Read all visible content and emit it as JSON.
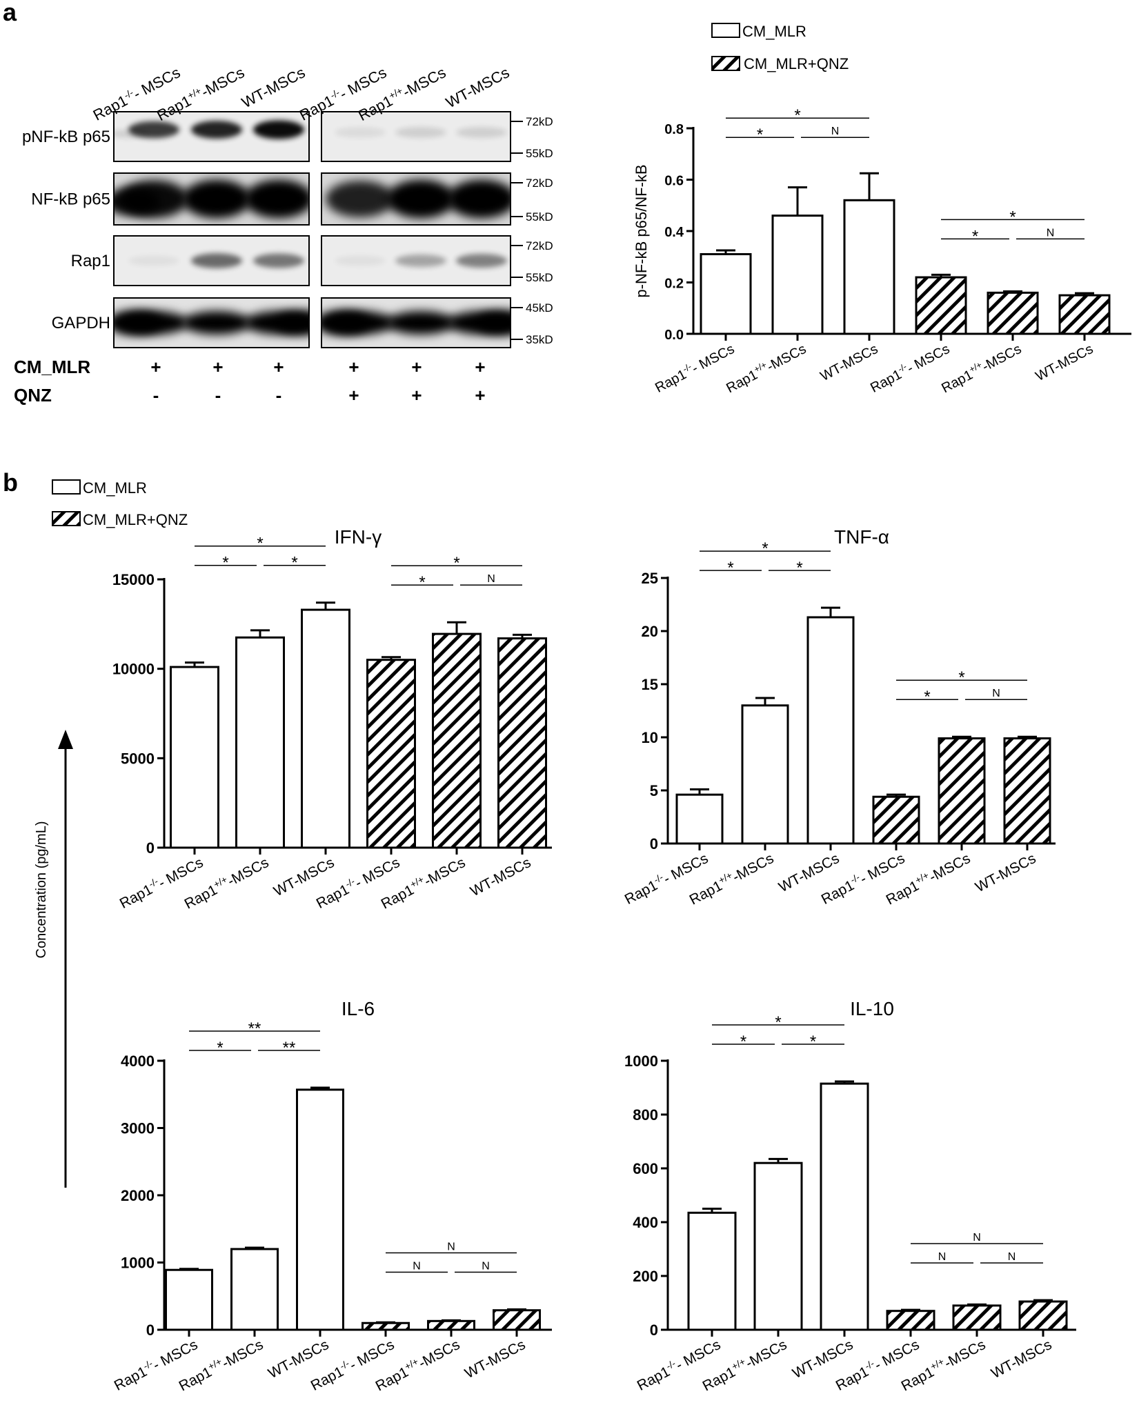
{
  "panels": {
    "a": "a",
    "b": "b"
  },
  "blot": {
    "rows": [
      {
        "label": "pNF-kB  p65",
        "markers": [
          "72kD",
          "55kD"
        ]
      },
      {
        "label": "NF-kB p65",
        "markers": [
          "72kD",
          "55kD"
        ]
      },
      {
        "label": "Rap1",
        "markers": [
          "72kD",
          "55kD"
        ]
      },
      {
        "label": "GAPDH",
        "markers": [
          "45kD",
          "35kD"
        ]
      }
    ],
    "lanes": [
      {
        "name": "Rap1",
        "sup": "-/-",
        "suffix": "- MSCs"
      },
      {
        "name": "Rap1",
        "sup": "+/+",
        "suffix": "-MSCs"
      },
      {
        "name": "WT-MSCs",
        "sup": "",
        "suffix": ""
      },
      {
        "name": "Rap1",
        "sup": "-/-",
        "suffix": "- MSCs"
      },
      {
        "name": "Rap1",
        "sup": "+/+",
        "suffix": "-MSCs"
      },
      {
        "name": "WT-MSCs",
        "sup": "",
        "suffix": ""
      }
    ],
    "treatments": [
      {
        "label": "CM_MLR",
        "values": [
          "+",
          "+",
          "+",
          "+",
          "+",
          "+"
        ]
      },
      {
        "label": "QNZ",
        "values": [
          "-",
          "-",
          "-",
          "+",
          "+",
          "+"
        ]
      }
    ]
  },
  "legend_a": [
    "CM_MLR",
    "CM_MLR+QNZ"
  ],
  "legend_b": [
    "CM_MLR",
    "CM_MLR+QNZ"
  ],
  "shared_ylabel": "Concentration (pg/mL)",
  "chart_data": [
    {
      "id": "pnfkb",
      "type": "bar",
      "title": "",
      "ylabel": "p-NF-kB p65/NF-kB",
      "ylim": [
        0,
        0.8
      ],
      "yticks": [
        "0.0",
        "0.2",
        "0.4",
        "0.6",
        "0.8"
      ],
      "categories": [
        {
          "name": "Rap1",
          "sup": "-/-",
          "suffix": "- MSCs"
        },
        {
          "name": "Rap1",
          "sup": "+/+",
          "suffix": "-MSCs"
        },
        {
          "name": "WT-MSCs",
          "sup": "",
          "suffix": ""
        },
        {
          "name": "Rap1",
          "sup": "-/-",
          "suffix": "- MSCs"
        },
        {
          "name": "Rap1",
          "sup": "+/+",
          "suffix": "-MSCs"
        },
        {
          "name": "WT-MSCs",
          "sup": "",
          "suffix": ""
        }
      ],
      "values": [
        0.31,
        0.46,
        0.52,
        0.22,
        0.16,
        0.15
      ],
      "errors": [
        0.015,
        0.11,
        0.105,
        0.01,
        0.005,
        0.008
      ],
      "hatched": [
        false,
        false,
        false,
        true,
        true,
        true
      ],
      "significance": [
        {
          "from": 0,
          "to": 1,
          "label": "*"
        },
        {
          "from": 1,
          "to": 2,
          "label": "N"
        },
        {
          "from": 0,
          "to": 2,
          "label": "*"
        },
        {
          "from": 3,
          "to": 4,
          "label": "*"
        },
        {
          "from": 4,
          "to": 5,
          "label": "N"
        },
        {
          "from": 3,
          "to": 5,
          "label": "*"
        }
      ]
    },
    {
      "id": "ifng",
      "type": "bar",
      "title": "IFN-γ",
      "ylabel": "",
      "ylim": [
        0,
        15000
      ],
      "yticks": [
        "0",
        "5000",
        "10000",
        "15000"
      ],
      "categories": [
        {
          "name": "Rap1",
          "sup": "-/-",
          "suffix": "- MSCs"
        },
        {
          "name": "Rap1",
          "sup": "+/+",
          "suffix": "-MSCs"
        },
        {
          "name": "WT-MSCs",
          "sup": "",
          "suffix": ""
        },
        {
          "name": "Rap1",
          "sup": "-/-",
          "suffix": "- MSCs"
        },
        {
          "name": "Rap1",
          "sup": "+/+",
          "suffix": "-MSCs"
        },
        {
          "name": "WT-MSCs",
          "sup": "",
          "suffix": ""
        }
      ],
      "values": [
        10100,
        11750,
        13300,
        10500,
        11950,
        11700
      ],
      "errors": [
        250,
        400,
        400,
        150,
        650,
        200
      ],
      "hatched": [
        false,
        false,
        false,
        true,
        true,
        true
      ],
      "significance": [
        {
          "from": 0,
          "to": 1,
          "label": "*"
        },
        {
          "from": 1,
          "to": 2,
          "label": "*"
        },
        {
          "from": 0,
          "to": 2,
          "label": "*"
        },
        {
          "from": 3,
          "to": 4,
          "label": "*"
        },
        {
          "from": 4,
          "to": 5,
          "label": "N"
        },
        {
          "from": 3,
          "to": 5,
          "label": "*"
        }
      ]
    },
    {
      "id": "tnfa",
      "type": "bar",
      "title": "TNF-α",
      "ylabel": "",
      "ylim": [
        0,
        25
      ],
      "yticks": [
        "0",
        "5",
        "10",
        "15",
        "20",
        "25"
      ],
      "categories": [
        {
          "name": "Rap1",
          "sup": "-/-",
          "suffix": "- MSCs"
        },
        {
          "name": "Rap1",
          "sup": "+/+",
          "suffix": "-MSCs"
        },
        {
          "name": "WT-MSCs",
          "sup": "",
          "suffix": ""
        },
        {
          "name": "Rap1",
          "sup": "-/-",
          "suffix": "- MSCs"
        },
        {
          "name": "Rap1",
          "sup": "+/+",
          "suffix": "-MSCs"
        },
        {
          "name": "WT-MSCs",
          "sup": "",
          "suffix": ""
        }
      ],
      "values": [
        4.6,
        13.0,
        21.3,
        4.4,
        9.9,
        9.9
      ],
      "errors": [
        0.5,
        0.7,
        0.9,
        0.2,
        0.15,
        0.15
      ],
      "hatched": [
        false,
        false,
        false,
        true,
        true,
        true
      ],
      "significance": [
        {
          "from": 0,
          "to": 1,
          "label": "*"
        },
        {
          "from": 1,
          "to": 2,
          "label": "*"
        },
        {
          "from": 0,
          "to": 2,
          "label": "*"
        },
        {
          "from": 3,
          "to": 4,
          "label": "*"
        },
        {
          "from": 4,
          "to": 5,
          "label": "N"
        },
        {
          "from": 3,
          "to": 5,
          "label": "*"
        }
      ]
    },
    {
      "id": "il6",
      "type": "bar",
      "title": "IL-6",
      "ylabel": "",
      "ylim": [
        0,
        4000
      ],
      "yticks": [
        "0",
        "1000",
        "2000",
        "3000",
        "4000"
      ],
      "categories": [
        {
          "name": "Rap1",
          "sup": "-/-",
          "suffix": "- MSCs"
        },
        {
          "name": "Rap1",
          "sup": "+/+",
          "suffix": "-MSCs"
        },
        {
          "name": "WT-MSCs",
          "sup": "",
          "suffix": ""
        },
        {
          "name": "Rap1",
          "sup": "-/-",
          "suffix": "- MSCs"
        },
        {
          "name": "Rap1",
          "sup": "+/+",
          "suffix": "-MSCs"
        },
        {
          "name": "WT-MSCs",
          "sup": "",
          "suffix": ""
        }
      ],
      "values": [
        890,
        1200,
        3570,
        100,
        130,
        290
      ],
      "errors": [
        15,
        20,
        30,
        10,
        10,
        12
      ],
      "hatched": [
        false,
        false,
        false,
        true,
        true,
        true
      ],
      "significance": [
        {
          "from": 0,
          "to": 1,
          "label": "*"
        },
        {
          "from": 1,
          "to": 2,
          "label": "**"
        },
        {
          "from": 0,
          "to": 2,
          "label": "**"
        },
        {
          "from": 3,
          "to": 4,
          "label": "N"
        },
        {
          "from": 4,
          "to": 5,
          "label": "N"
        },
        {
          "from": 3,
          "to": 5,
          "label": "N"
        }
      ]
    },
    {
      "id": "il10",
      "type": "bar",
      "title": "IL-10",
      "ylabel": "",
      "ylim": [
        0,
        1000
      ],
      "yticks": [
        "0",
        "200",
        "400",
        "600",
        "800",
        "1000"
      ],
      "categories": [
        {
          "name": "Rap1",
          "sup": "-/-",
          "suffix": "- MSCs"
        },
        {
          "name": "Rap1",
          "sup": "+/+",
          "suffix": "-MSCs"
        },
        {
          "name": "WT-MSCs",
          "sup": "",
          "suffix": ""
        },
        {
          "name": "Rap1",
          "sup": "-/-",
          "suffix": "- MSCs"
        },
        {
          "name": "Rap1",
          "sup": "+/+",
          "suffix": "-MSCs"
        },
        {
          "name": "WT-MSCs",
          "sup": "",
          "suffix": ""
        }
      ],
      "values": [
        435,
        620,
        915,
        70,
        90,
        105
      ],
      "errors": [
        15,
        15,
        8,
        4,
        4,
        5
      ],
      "hatched": [
        false,
        false,
        false,
        true,
        true,
        true
      ],
      "significance": [
        {
          "from": 0,
          "to": 1,
          "label": "*"
        },
        {
          "from": 1,
          "to": 2,
          "label": "*"
        },
        {
          "from": 0,
          "to": 2,
          "label": "*"
        },
        {
          "from": 3,
          "to": 4,
          "label": "N"
        },
        {
          "from": 4,
          "to": 5,
          "label": "N"
        },
        {
          "from": 3,
          "to": 5,
          "label": "N"
        }
      ]
    }
  ]
}
